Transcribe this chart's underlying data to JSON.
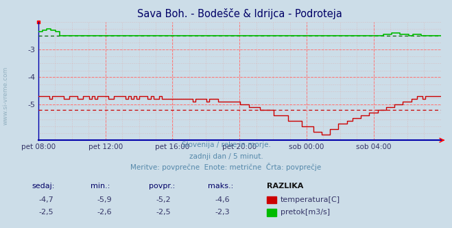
{
  "title": "Sava Boh. - Bodešče & Idrijca - Podroteja",
  "bg_color": "#ccdde8",
  "plot_bg_color": "#ccdde8",
  "x_labels": [
    "pet 08:00",
    "pet 12:00",
    "pet 16:00",
    "pet 20:00",
    "sob 00:00",
    "sob 04:00"
  ],
  "x_ticks_norm": [
    0.0,
    0.1667,
    0.3333,
    0.5,
    0.6667,
    0.8333
  ],
  "y_min": -6.3,
  "y_max": -2.0,
  "y_ticks": [
    -3,
    -4,
    -5
  ],
  "temp_avg": -5.2,
  "flow_avg": -2.5,
  "temp_color": "#cc0000",
  "flow_color": "#00bb00",
  "subtitle1": "Slovenija / reke in morje.",
  "subtitle2": "zadnji dan / 5 minut.",
  "subtitle3": "Meritve: povprečne  Enote: metrične  Črta: povprečje",
  "table_header": [
    "sedaj:",
    "min.:",
    "povpr.:",
    "maks.:",
    "RAZLIKA"
  ],
  "table_temp": [
    "-4,7",
    "-5,9",
    "-5,2",
    "-4,6"
  ],
  "table_flow": [
    "-2,5",
    "-2,6",
    "-2,5",
    "-2,3"
  ],
  "label_temp": "temperatura[C]",
  "label_flow": "pretok[m3/s]",
  "n_points": 288
}
